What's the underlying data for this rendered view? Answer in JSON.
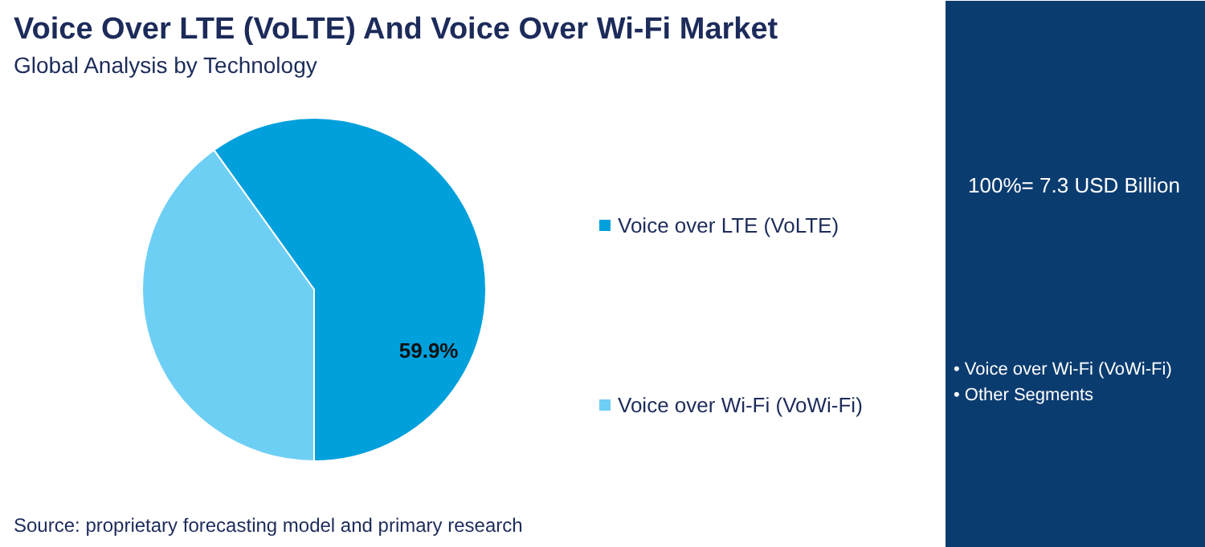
{
  "chart_data": {
    "type": "pie",
    "title": "Voice Over LTE (VoLTE) And Voice Over Wi-Fi Market",
    "subtitle": "Global Analysis by Technology",
    "categories": [
      "Voice over LTE (VoLTE)",
      "Voice over Wi-Fi (VoWi-Fi)"
    ],
    "values": [
      59.9,
      40.1
    ],
    "colors": [
      "#00a0dc",
      "#6ecff5"
    ],
    "value_labels": [
      "59.9%",
      null
    ],
    "legend": "right",
    "annotations": [
      "100%= 7.3 USD Billion",
      "• Voice over Wi-Fi (VoWi-Fi)",
      "• Other Segments",
      "Source: proprietary forecasting model and primary research"
    ]
  }
}
